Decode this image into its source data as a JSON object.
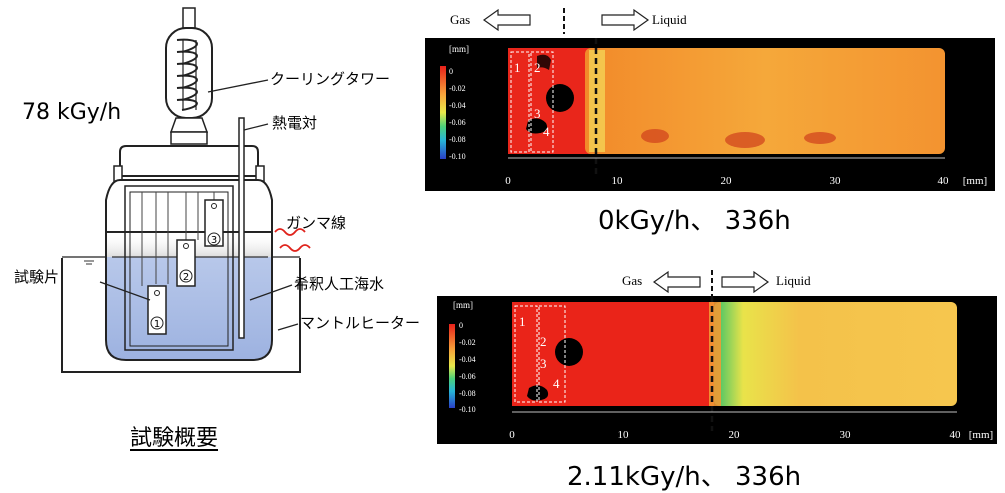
{
  "apparatus": {
    "dose_rate": "78 kGy/h",
    "labels": {
      "cooling_tower": "クーリングタワー",
      "thermocouple": "熱電対",
      "gamma": "ガンマ線",
      "specimen": "試験片",
      "seawater": "希釈人工海水",
      "mantle_heater": "マントルヒーター"
    },
    "specimen_numbers": [
      "1",
      "2",
      "3"
    ],
    "caption": "試験概要"
  },
  "panels": [
    {
      "caption": "0kGy/h、 336h",
      "gas_label": "Gas",
      "liquid_label": "Liquid",
      "unit_label": "[mm]",
      "axis_unit": "[mm]",
      "colorbar_ticks": [
        "0",
        "-0.02",
        "-0.04",
        "-0.06",
        "-0.08",
        "-0.10"
      ],
      "x_ticks": [
        "0",
        "10",
        "20",
        "30",
        "40"
      ],
      "zone_numbers": [
        "1",
        "2",
        "3",
        "4"
      ]
    },
    {
      "caption": "2.11kGy/h、 336h",
      "gas_label": "Gas",
      "liquid_label": "Liquid",
      "unit_label": "[mm]",
      "axis_unit": "[mm]",
      "colorbar_ticks": [
        "0",
        "-0.02",
        "-0.04",
        "-0.06",
        "-0.08",
        "-0.10"
      ],
      "x_ticks": [
        "0",
        "10",
        "20",
        "30",
        "40"
      ],
      "zone_numbers": [
        "1",
        "2",
        "3",
        "4"
      ]
    }
  ],
  "colors": {
    "water": "#a9bce4",
    "corrosion_deep": "#e8201a",
    "corrosion_light": "#f7c94a"
  }
}
